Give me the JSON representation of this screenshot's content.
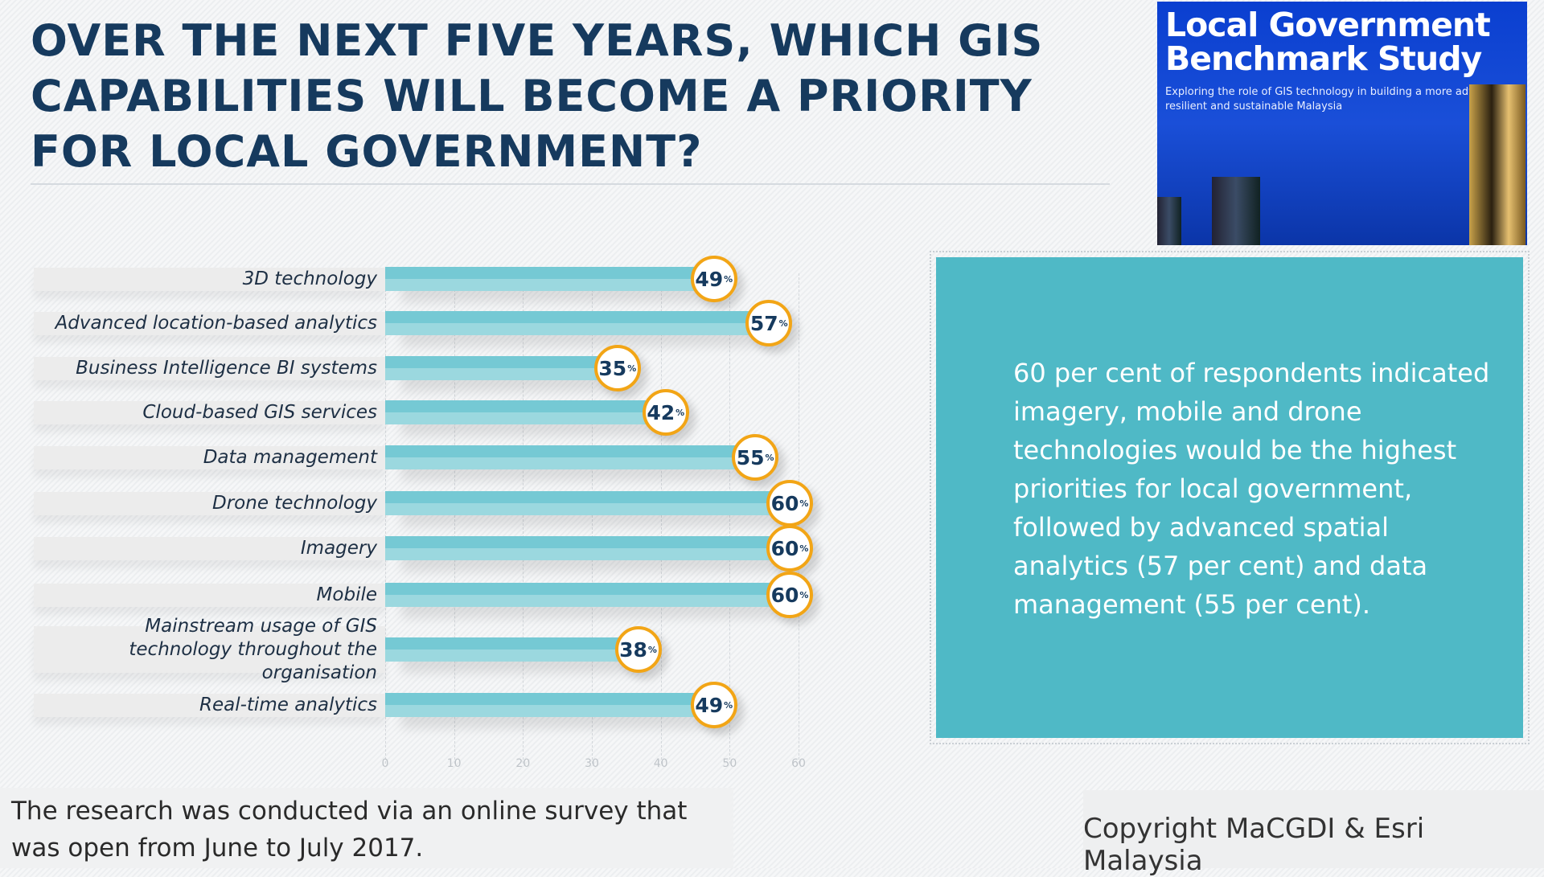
{
  "title": "OVER THE NEXT FIVE YEARS, WHICH GIS CAPABILITIES WILL BECOME A PRIORITY FOR LOCAL GOVERNMENT?",
  "cover": {
    "title": "Local Government Benchmark Study",
    "subtitle": "Exploring the role of GIS technology in building a more advanced, resilient and sustainable Malaysia"
  },
  "info_text": "60 per cent of respondents indicated imagery, mobile and drone technologies would be the highest priorities for local government, followed by advanced spatial analytics (57 per cent) and data management (55 per cent).",
  "note": "The research was conducted via an online survey that was open from June to July 2017.",
  "copyright": "Copyright MaCGDI & Esri Malaysia",
  "colors": {
    "bar": "#75c9d4",
    "badge_border": "#f2a516",
    "title": "#163a5e",
    "info_bg": "#4fb9c6"
  },
  "chart_data": {
    "type": "bar",
    "orientation": "horizontal",
    "title": "OVER THE NEXT FIVE YEARS, WHICH GIS CAPABILITIES WILL BECOME A PRIORITY FOR LOCAL GOVERNMENT?",
    "categories": [
      "3D technology",
      "Advanced location-based analytics",
      "Business Intelligence BI systems",
      "Cloud-based GIS services",
      "Data management",
      "Drone technology",
      "Imagery",
      "Mobile",
      "Mainstream usage of GIS technology throughout the organisation",
      "Real-time analytics"
    ],
    "values": [
      49,
      57,
      35,
      42,
      55,
      60,
      60,
      60,
      38,
      49
    ],
    "unit": "%",
    "xlim": [
      0,
      60
    ],
    "xticks": [
      "0",
      "10",
      "20",
      "30",
      "40",
      "50",
      "60"
    ],
    "grid": true
  }
}
